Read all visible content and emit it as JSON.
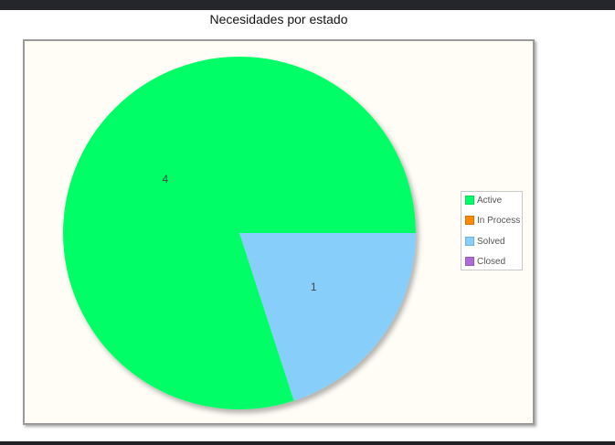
{
  "chart_data": {
    "type": "pie",
    "title": "Necesidades por estado",
    "categories": [
      "Active",
      "In Process",
      "Solved",
      "Closed"
    ],
    "values": [
      4,
      0,
      1,
      0
    ],
    "colors": [
      "#00ff66",
      "#ff8800",
      "#87cefa",
      "#b06ad8"
    ],
    "data_labels": [
      "4",
      "",
      "1",
      ""
    ],
    "legend_position": "right"
  },
  "window": {
    "top_bar_color": "#24262c",
    "plot_background": "#fffdf5"
  }
}
